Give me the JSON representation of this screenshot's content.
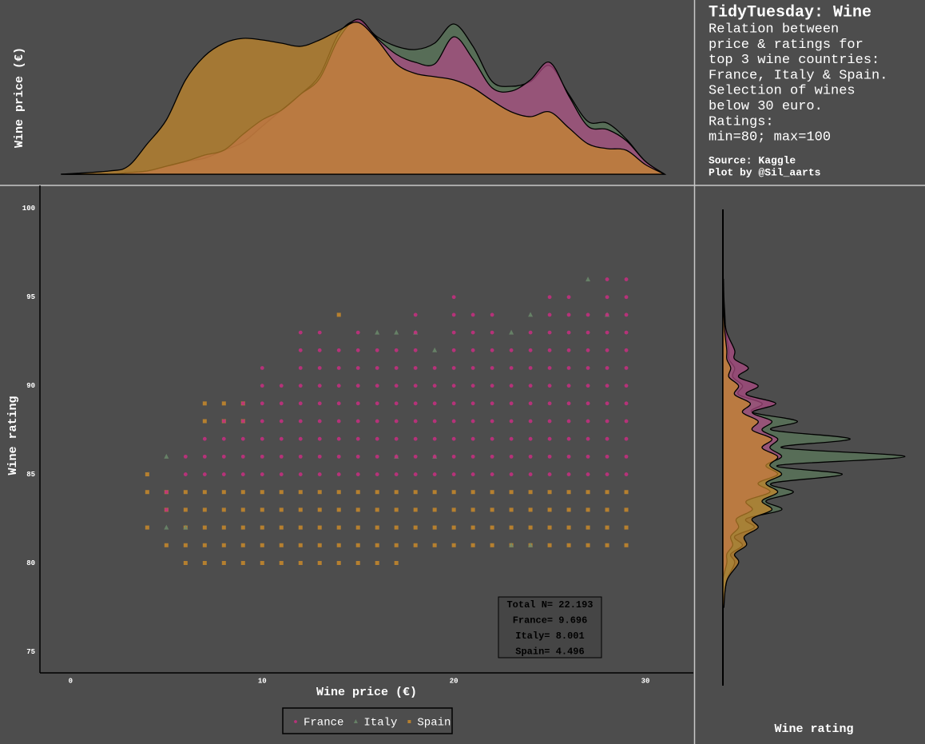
{
  "text_panel": {
    "title": "TidyTuesday: Wine",
    "subtitle": [
      "Relation between",
      "price & ratings for",
      "top 3 wine countries:",
      "France, Italy & Spain.",
      "Selection of wines",
      "below 30 euro.",
      "Ratings:",
      "min=80; max=100"
    ],
    "source": [
      "Source: Kaggle",
      "Plot by @Sil_aarts"
    ]
  },
  "chart_data": [
    {
      "type": "density",
      "orientation": "vertical",
      "ylabel": "Wine price (€)",
      "xlim": [
        -1.6,
        32.5
      ],
      "ylim": [
        0,
        0.1
      ],
      "series": [
        {
          "name": "Italy",
          "color": "#5b7a5b",
          "x": [
            -0.5,
            2,
            3,
            4,
            5,
            6,
            7,
            8,
            9,
            10,
            11,
            12,
            13,
            14,
            15,
            16,
            17,
            18,
            19,
            20,
            21,
            22,
            23,
            24,
            25,
            26,
            27,
            28,
            29,
            30,
            31
          ],
          "values": [
            0,
            0,
            0.001,
            0.002,
            0.005,
            0.008,
            0.01,
            0.015,
            0.02,
            0.03,
            0.04,
            0.05,
            0.062,
            0.088,
            0.096,
            0.086,
            0.08,
            0.078,
            0.082,
            0.094,
            0.08,
            0.058,
            0.055,
            0.058,
            0.068,
            0.05,
            0.033,
            0.032,
            0.022,
            0.008,
            0
          ]
        },
        {
          "name": "France",
          "color": "#b04a86",
          "x": [
            -0.5,
            2,
            3,
            4,
            5,
            6,
            7,
            8,
            9,
            10,
            11,
            12,
            13,
            14,
            15,
            16,
            17,
            18,
            19,
            20,
            21,
            22,
            23,
            24,
            25,
            26,
            27,
            28,
            29,
            30,
            31
          ],
          "values": [
            0,
            0,
            0.001,
            0.002,
            0.005,
            0.008,
            0.012,
            0.015,
            0.025,
            0.034,
            0.04,
            0.05,
            0.06,
            0.085,
            0.097,
            0.085,
            0.075,
            0.07,
            0.069,
            0.086,
            0.072,
            0.054,
            0.052,
            0.059,
            0.07,
            0.049,
            0.03,
            0.028,
            0.021,
            0.008,
            0
          ]
        },
        {
          "name": "Spain",
          "color": "#c98a2a",
          "x": [
            -0.5,
            2,
            3,
            4,
            5,
            6,
            7,
            8,
            9,
            10,
            11,
            12,
            13,
            14,
            15,
            16,
            17,
            18,
            19,
            20,
            21,
            22,
            23,
            24,
            25,
            26,
            27,
            28,
            29,
            30,
            31
          ],
          "values": [
            0,
            0.002,
            0.005,
            0.019,
            0.034,
            0.059,
            0.074,
            0.082,
            0.085,
            0.084,
            0.082,
            0.08,
            0.084,
            0.09,
            0.095,
            0.084,
            0.069,
            0.063,
            0.061,
            0.059,
            0.054,
            0.046,
            0.039,
            0.036,
            0.039,
            0.029,
            0.019,
            0.016,
            0.015,
            0.006,
            0
          ]
        }
      ]
    },
    {
      "type": "scatter",
      "xlabel": "Wine price (€)",
      "ylabel": "Wine rating",
      "xlim": [
        -1.6,
        32.5
      ],
      "ylim": [
        73.8,
        101.3
      ],
      "xticks": [
        0,
        10,
        20,
        30
      ],
      "yticks": [
        75,
        80,
        85,
        90,
        95,
        100
      ],
      "legend": "bottom",
      "annotation": [
        "Total N= 22.193",
        "France= 9.696",
        "Italy= 8.001",
        "Spain= 4.496"
      ],
      "series": [
        {
          "name": "France",
          "color": "#c2307e",
          "marker": "circle",
          "x": [
            5,
            5,
            6,
            6,
            7,
            7,
            7,
            8,
            8,
            8,
            8,
            9,
            9,
            9,
            9,
            9,
            10,
            10,
            10,
            10,
            10,
            10,
            10,
            11,
            11,
            11,
            11,
            11,
            11,
            12,
            12,
            12,
            12,
            12,
            12,
            12,
            12,
            12,
            13,
            13,
            13,
            13,
            13,
            13,
            13,
            13,
            13,
            14,
            14,
            14,
            14,
            14,
            14,
            14,
            14,
            15,
            15,
            15,
            15,
            15,
            15,
            15,
            15,
            15,
            16,
            16,
            16,
            16,
            16,
            16,
            16,
            16,
            17,
            17,
            17,
            17,
            17,
            17,
            17,
            17,
            18,
            18,
            18,
            18,
            18,
            18,
            18,
            18,
            18,
            18,
            19,
            19,
            19,
            19,
            19,
            19,
            19,
            20,
            20,
            20,
            20,
            20,
            20,
            20,
            20,
            20,
            20,
            20,
            21,
            21,
            21,
            21,
            21,
            21,
            21,
            21,
            21,
            21,
            22,
            22,
            22,
            22,
            22,
            22,
            22,
            22,
            22,
            22,
            23,
            23,
            23,
            23,
            23,
            23,
            23,
            23,
            24,
            24,
            24,
            24,
            24,
            24,
            24,
            24,
            24,
            25,
            25,
            25,
            25,
            25,
            25,
            25,
            25,
            25,
            25,
            25,
            26,
            26,
            26,
            26,
            26,
            26,
            26,
            26,
            26,
            26,
            26,
            27,
            27,
            27,
            27,
            27,
            27,
            27,
            27,
            27,
            27,
            28,
            28,
            28,
            28,
            28,
            28,
            28,
            28,
            28,
            28,
            28,
            28,
            29,
            29,
            29,
            29,
            29,
            29,
            29,
            29,
            29,
            29,
            29,
            29
          ],
          "values": [
            83,
            84,
            85,
            86,
            85,
            86,
            87,
            85,
            86,
            87,
            88,
            85,
            86,
            87,
            88,
            89,
            85,
            86,
            87,
            88,
            89,
            90,
            91,
            85,
            86,
            87,
            88,
            89,
            90,
            85,
            86,
            87,
            88,
            89,
            90,
            91,
            92,
            93,
            85,
            86,
            87,
            88,
            89,
            90,
            91,
            92,
            93,
            85,
            86,
            87,
            88,
            89,
            90,
            91,
            92,
            85,
            86,
            87,
            88,
            89,
            90,
            91,
            92,
            93,
            85,
            86,
            87,
            88,
            89,
            90,
            91,
            92,
            85,
            86,
            87,
            88,
            89,
            90,
            91,
            92,
            85,
            86,
            87,
            88,
            89,
            90,
            91,
            92,
            93,
            94,
            85,
            86,
            87,
            88,
            89,
            90,
            91,
            85,
            86,
            87,
            88,
            89,
            90,
            91,
            92,
            93,
            94,
            95,
            85,
            86,
            87,
            88,
            89,
            90,
            91,
            92,
            93,
            94,
            85,
            86,
            87,
            88,
            89,
            90,
            91,
            92,
            93,
            94,
            85,
            86,
            87,
            88,
            89,
            90,
            91,
            92,
            85,
            86,
            87,
            88,
            89,
            90,
            91,
            92,
            93,
            85,
            86,
            87,
            88,
            89,
            90,
            91,
            92,
            93,
            94,
            95,
            85,
            86,
            87,
            88,
            89,
            90,
            91,
            92,
            93,
            94,
            95,
            85,
            86,
            87,
            88,
            89,
            90,
            91,
            92,
            93,
            94,
            85,
            86,
            87,
            88,
            89,
            90,
            91,
            92,
            93,
            94,
            95,
            96,
            85,
            86,
            87,
            88,
            89,
            90,
            91,
            92,
            93,
            94,
            95,
            96
          ]
        },
        {
          "name": "Italy",
          "color": "#6b8a6b",
          "marker": "triangle",
          "x": [
            5,
            5,
            6,
            16,
            17,
            17,
            18,
            19,
            19,
            23,
            23,
            24,
            24,
            27,
            28
          ],
          "values": [
            82,
            86,
            82,
            93,
            86,
            93,
            93,
            86,
            92,
            81,
            93,
            81,
            94,
            96,
            94
          ]
        },
        {
          "name": "Spain",
          "color": "#c98a2a",
          "marker": "square",
          "x": [
            4,
            4,
            4,
            5,
            5,
            5,
            6,
            6,
            6,
            6,
            6,
            7,
            7,
            7,
            7,
            7,
            8,
            8,
            8,
            8,
            8,
            9,
            9,
            9,
            9,
            9,
            10,
            10,
            10,
            10,
            10,
            11,
            11,
            11,
            11,
            11,
            12,
            12,
            12,
            12,
            12,
            13,
            13,
            13,
            13,
            13,
            14,
            14,
            14,
            14,
            14,
            15,
            15,
            15,
            15,
            15,
            16,
            16,
            16,
            16,
            16,
            17,
            17,
            17,
            17,
            17,
            18,
            18,
            18,
            18,
            19,
            19,
            19,
            19,
            20,
            20,
            20,
            20,
            21,
            21,
            21,
            21,
            22,
            22,
            22,
            22,
            23,
            23,
            23,
            23,
            24,
            24,
            24,
            24,
            25,
            25,
            25,
            25,
            26,
            26,
            26,
            26,
            27,
            27,
            27,
            27,
            28,
            28,
            28,
            28,
            29,
            29,
            29,
            29,
            7,
            7,
            8,
            8,
            9,
            9,
            14
          ],
          "values": [
            82,
            84,
            85,
            81,
            83,
            84,
            80,
            81,
            82,
            83,
            84,
            80,
            81,
            82,
            83,
            84,
            80,
            81,
            82,
            83,
            84,
            80,
            81,
            82,
            83,
            84,
            80,
            81,
            82,
            83,
            84,
            80,
            81,
            82,
            83,
            84,
            80,
            81,
            82,
            83,
            84,
            80,
            81,
            82,
            83,
            84,
            80,
            81,
            82,
            83,
            84,
            80,
            81,
            82,
            83,
            84,
            80,
            81,
            82,
            83,
            84,
            80,
            81,
            82,
            83,
            84,
            81,
            82,
            83,
            84,
            81,
            82,
            83,
            84,
            81,
            82,
            83,
            84,
            81,
            82,
            83,
            84,
            81,
            82,
            83,
            84,
            81,
            82,
            83,
            84,
            81,
            82,
            83,
            84,
            81,
            82,
            83,
            84,
            81,
            82,
            83,
            84,
            81,
            82,
            83,
            84,
            81,
            82,
            83,
            84,
            81,
            82,
            83,
            84,
            88,
            89,
            88,
            89,
            88,
            89,
            94
          ]
        }
      ]
    },
    {
      "type": "density",
      "orientation": "horizontal",
      "xlabel": "Wine rating",
      "xlim": [
        0,
        1
      ],
      "ylim": [
        73.8,
        101.3
      ],
      "series": [
        {
          "name": "Italy",
          "color": "#5b7a5b",
          "x": [
            77.5,
            79,
            80,
            80.5,
            81,
            81.5,
            82,
            82.5,
            83,
            83.5,
            84,
            84.5,
            85,
            85.5,
            86,
            86.5,
            87,
            87.5,
            88,
            88.5,
            89,
            89.5,
            90,
            90.5,
            91,
            91.5,
            92,
            93,
            94,
            95,
            96
          ],
          "values": [
            0,
            0.02,
            0.06,
            0.04,
            0.1,
            0.06,
            0.16,
            0.12,
            0.3,
            0.22,
            0.36,
            0.25,
            0.61,
            0.28,
            0.93,
            0.3,
            0.65,
            0.25,
            0.38,
            0.15,
            0.2,
            0.08,
            0.1,
            0.05,
            0.06,
            0.03,
            0.03,
            0.015,
            0.01,
            0.005,
            0.003
          ]
        },
        {
          "name": "France",
          "color": "#b04a86",
          "x": [
            77.5,
            79,
            80,
            80.5,
            81,
            81.5,
            82,
            82.5,
            83,
            83.5,
            84,
            84.5,
            85,
            85.5,
            86,
            86.5,
            87,
            87.5,
            88,
            88.5,
            89,
            89.5,
            90,
            90.5,
            91,
            91.5,
            92,
            93,
            94,
            95,
            96
          ],
          "values": [
            0,
            0,
            0.02,
            0.02,
            0.05,
            0.04,
            0.08,
            0.07,
            0.15,
            0.12,
            0.24,
            0.18,
            0.28,
            0.22,
            0.3,
            0.24,
            0.28,
            0.2,
            0.25,
            0.15,
            0.27,
            0.12,
            0.18,
            0.08,
            0.13,
            0.06,
            0.06,
            0.02,
            0.005,
            0.002,
            0
          ]
        },
        {
          "name": "Spain",
          "color": "#c98a2a",
          "x": [
            77.5,
            79,
            80,
            80.5,
            81,
            81.5,
            82,
            82.5,
            83,
            83.5,
            84,
            84.5,
            85,
            85.5,
            86,
            86.5,
            87,
            87.5,
            88,
            88.5,
            89,
            89.5,
            90,
            90.5,
            91,
            91.5,
            92,
            93,
            94,
            95,
            96
          ],
          "values": [
            0.005,
            0.02,
            0.08,
            0.06,
            0.12,
            0.11,
            0.18,
            0.15,
            0.25,
            0.2,
            0.28,
            0.22,
            0.3,
            0.24,
            0.28,
            0.2,
            0.25,
            0.15,
            0.18,
            0.1,
            0.14,
            0.06,
            0.08,
            0.03,
            0.04,
            0.02,
            0.02,
            0.01,
            0.005,
            0,
            0
          ]
        }
      ]
    }
  ]
}
